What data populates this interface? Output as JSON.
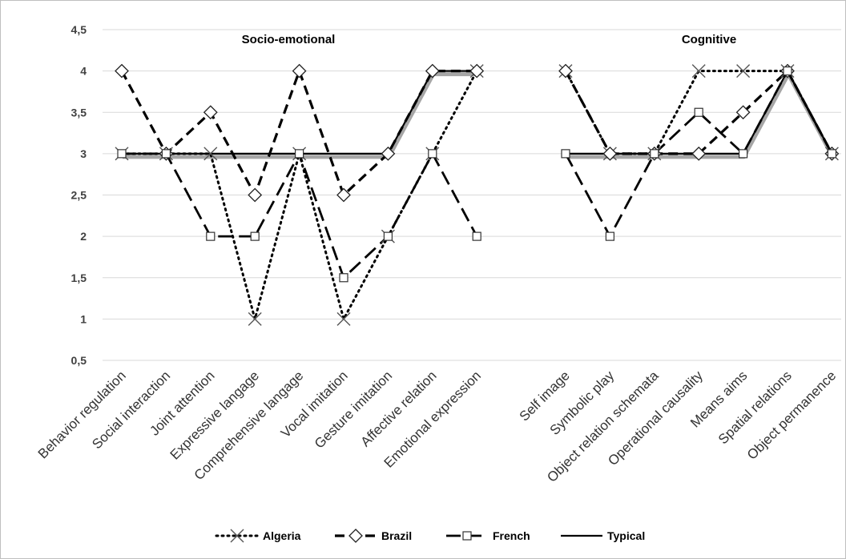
{
  "chart_data": {
    "type": "line",
    "panels": [
      {
        "title": "Socio-emotional",
        "categories": [
          "Behavior regulation",
          "Social interaction",
          "Joint attention",
          "Expressive langage",
          "Comprehensive langage",
          "Vocal imitation",
          "Gesture imitation",
          "Affective relation",
          "Emotional expression"
        ]
      },
      {
        "title": "Cognitive",
        "categories": [
          "Self image",
          "Symbolic play",
          "Object relation schemata",
          "Operational causality",
          "Means aims",
          "Spatial relations",
          "Object permanence"
        ]
      }
    ],
    "series": [
      {
        "name": "Algeria",
        "style": "dotted",
        "marker": "x",
        "values": [
          3,
          3,
          3,
          1,
          3,
          1,
          2,
          3,
          4,
          null,
          4,
          3,
          3,
          4,
          4,
          4,
          3
        ]
      },
      {
        "name": "Brazil",
        "style": "dashed",
        "marker": "diamond",
        "values": [
          4,
          3,
          3.5,
          2.5,
          4,
          2.5,
          3,
          4,
          4,
          null,
          4,
          3,
          3,
          3,
          3.5,
          4,
          3
        ]
      },
      {
        "name": "French",
        "style": "longdash",
        "marker": "square",
        "values": [
          3,
          3,
          2,
          2,
          3,
          1.5,
          2,
          3,
          2,
          null,
          3,
          2,
          3,
          3.5,
          3,
          4,
          3
        ]
      },
      {
        "name": "Typical",
        "style": "solid",
        "marker": "none",
        "values": [
          3,
          3,
          3,
          3,
          3,
          3,
          3,
          4,
          4,
          null,
          3,
          3,
          3,
          3,
          3,
          4,
          3
        ]
      }
    ],
    "ylim": [
      0.5,
      4.5
    ],
    "yticks": [
      "0,5",
      "1",
      "1,5",
      "2",
      "2,5",
      "3",
      "3,5",
      "4",
      "4,5"
    ],
    "grid": true,
    "legend": "bottom",
    "colors": {
      "line": "#000000",
      "shadow": "#a6a6a6",
      "grid": "#d9d9d9"
    }
  }
}
